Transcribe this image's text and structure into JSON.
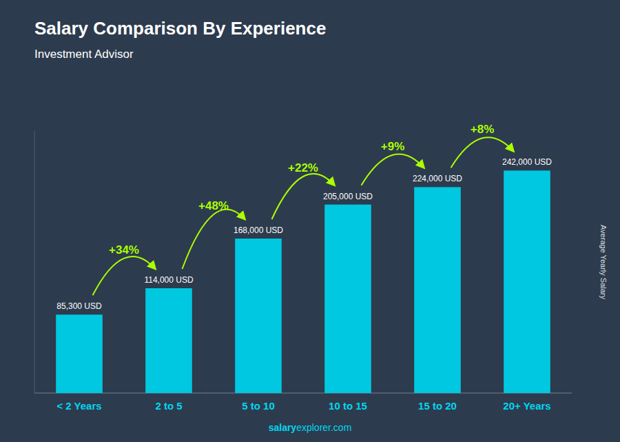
{
  "chart_data": {
    "type": "bar",
    "title": "Salary Comparison By Experience",
    "subtitle": "Investment Advisor",
    "y_label": "Average Yearly Salary",
    "categories": [
      "< 2 Years",
      "2 to 5",
      "5 to 10",
      "10 to 15",
      "15 to 20",
      "20+ Years"
    ],
    "values": [
      85300,
      114000,
      168000,
      205000,
      224000,
      242000
    ],
    "value_labels": [
      "85,300 USD",
      "114,000 USD",
      "168,000 USD",
      "205,000 USD",
      "224,000 USD",
      "242,000 USD"
    ],
    "data_labels": true,
    "annotations": [
      "+34%",
      "+48%",
      "+22%",
      "+9%",
      "+8%"
    ],
    "watermark": [
      "salary",
      "explorer.com"
    ],
    "color": "#00c8e0",
    "ylim": [
      0,
      285000
    ],
    "tick_labels": "x",
    "grid": false
  }
}
